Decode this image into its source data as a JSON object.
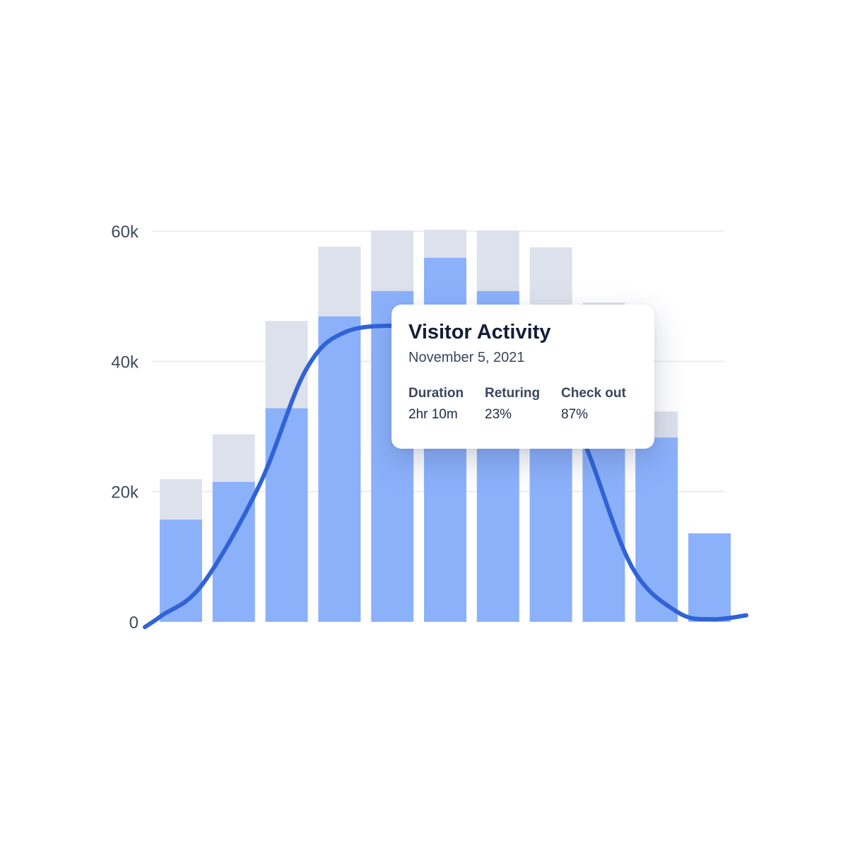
{
  "chart_data": {
    "type": "bar",
    "stacked": true,
    "categories": [
      "",
      "",
      "",
      "",
      "",
      "",
      "",
      "",
      "",
      "",
      ""
    ],
    "series": [
      {
        "values": [
          15700,
          21500,
          32800,
          46900,
          50800,
          55900,
          50800,
          46300,
          39600,
          28300,
          13600
        ]
      },
      {
        "values": [
          6200,
          7300,
          13400,
          10700,
          9300,
          4300,
          9300,
          11200,
          9400,
          4000,
          0
        ]
      }
    ],
    "overlay_line": {
      "type": "line",
      "smooth": true,
      "x": [
        0,
        0.3,
        1.0,
        2.0,
        2.8,
        3.5,
        4.6,
        5.5,
        6.3,
        7.0,
        7.7,
        8.5,
        9.3,
        9.9,
        10.5
      ],
      "values": [
        -800,
        1000,
        5700,
        21000,
        38500,
        44500,
        45500,
        45000,
        44000,
        41000,
        27000,
        8500,
        1500,
        400,
        1000
      ]
    },
    "yticks": [
      "0",
      "20k",
      "40k",
      "60k"
    ],
    "ytick_values": [
      0,
      20000,
      40000,
      60000
    ],
    "ylim": [
      0,
      60000
    ],
    "grid": true,
    "colors": {
      "primary_bar": "#8cb1fb",
      "secondary_bar": "#dde1ec",
      "line": "#3063d6",
      "grid": "#e6e8ef",
      "tick_text": "#3f4a5c"
    }
  },
  "tooltip": {
    "title": "Visitor Activity",
    "date": "November 5, 2021",
    "stats": [
      {
        "label": "Duration",
        "value": "2hr 10m"
      },
      {
        "label": "Returing",
        "value": "23%"
      },
      {
        "label": "Check out",
        "value": "87%"
      }
    ]
  }
}
